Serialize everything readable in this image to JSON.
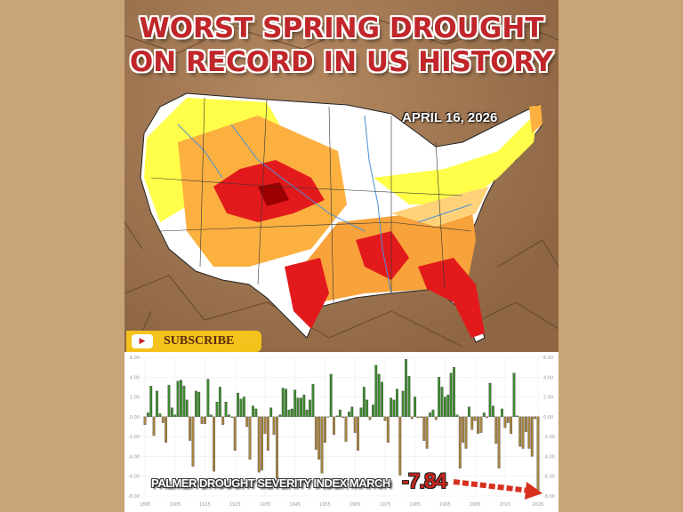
{
  "header": {
    "title_line1": "WORST SPRING DROUGHT",
    "title_line2": "ON RECORD IN US HISTORY",
    "date": "APRIL 16, 2026"
  },
  "subscribe": {
    "label": "SUBSCRIBE",
    "icon": "youtube-play-icon"
  },
  "map": {
    "subject": "US drought monitor map",
    "colors": {
      "abnormally_dry": "#ffff00",
      "moderate": "#fcd37f",
      "severe": "#ffaa00",
      "extreme": "#e60000",
      "exceptional": "#730000",
      "none": "#ffffff",
      "rivers": "#4a90d9"
    }
  },
  "annotation": {
    "label": "PALMER DROUGHT SEVERITY INDEX MARCH",
    "last_value": "-7.84"
  },
  "colors": {
    "positive": "#3d8a2e",
    "negative": "#a78440",
    "arrow": "#d8301e",
    "title": "#c0262a",
    "subscribe_bg": "#f4c21c"
  },
  "chart_data": {
    "type": "bar",
    "title": "",
    "xlabel": "",
    "ylabel": "",
    "ylim": [
      -8,
      6
    ],
    "grid": true,
    "y_ticks": [
      "6.00",
      "4.00",
      "2.00",
      "0.00",
      "-2.00",
      "-4.00",
      "-6.00",
      "-8.00"
    ],
    "x_ticks": [
      "1895",
      "1905",
      "1915",
      "1925",
      "1935",
      "1945",
      "1955",
      "1965",
      "1975",
      "1985",
      "1995",
      "2005",
      "2015",
      "2026"
    ],
    "x": [
      1895,
      1896,
      1897,
      1898,
      1899,
      1900,
      1901,
      1902,
      1903,
      1904,
      1905,
      1906,
      1907,
      1908,
      1909,
      1910,
      1911,
      1912,
      1913,
      1914,
      1915,
      1916,
      1917,
      1918,
      1919,
      1920,
      1921,
      1922,
      1923,
      1924,
      1925,
      1926,
      1927,
      1928,
      1929,
      1930,
      1931,
      1932,
      1933,
      1934,
      1935,
      1936,
      1937,
      1938,
      1939,
      1940,
      1941,
      1942,
      1943,
      1944,
      1945,
      1946,
      1947,
      1948,
      1949,
      1950,
      1951,
      1952,
      1953,
      1954,
      1955,
      1956,
      1957,
      1958,
      1959,
      1960,
      1961,
      1962,
      1963,
      1964,
      1965,
      1966,
      1967,
      1968,
      1969,
      1970,
      1971,
      1972,
      1973,
      1974,
      1975,
      1976,
      1977,
      1978,
      1979,
      1980,
      1981,
      1982,
      1983,
      1984,
      1985,
      1986,
      1987,
      1988,
      1989,
      1990,
      1991,
      1992,
      1993,
      1994,
      1995,
      1996,
      1997,
      1998,
      1999,
      2000,
      2001,
      2002,
      2003,
      2004,
      2005,
      2006,
      2007,
      2008,
      2009,
      2010,
      2011,
      2012,
      2013,
      2014,
      2015,
      2016,
      2017,
      2018,
      2019,
      2020,
      2021,
      2022,
      2023,
      2024,
      2025,
      2026
    ],
    "values": [
      -0.8,
      0.4,
      3.1,
      -1.9,
      2.6,
      0.3,
      -0.6,
      -2.6,
      3.2,
      0.9,
      0.2,
      3.6,
      3.7,
      3.1,
      1.7,
      -2.4,
      -5.0,
      2.6,
      2.5,
      -0.7,
      -0.7,
      3.8,
      0.2,
      -5.5,
      1.5,
      3.0,
      -0.8,
      1.5,
      0.2,
      -0.1,
      -3.4,
      2.4,
      1.8,
      2.0,
      -1.0,
      -4.3,
      1.1,
      0.8,
      -5.6,
      -5.4,
      -1.7,
      -3.4,
      0.9,
      -1.8,
      -6.2,
      0.2,
      2.9,
      2.8,
      0.7,
      0.8,
      2.7,
      1.9,
      1.9,
      2.2,
      0.7,
      1.7,
      3.3,
      -3.3,
      -4.3,
      -5.7,
      -2.6,
      0.0,
      4.3,
      -1.8,
      0.1,
      0.7,
      -0.1,
      -2.5,
      0.5,
      1.0,
      -1.6,
      -3.4,
      0.9,
      3.0,
      1.7,
      -0.3,
      1.2,
      5.2,
      4.3,
      3.5,
      -0.4,
      -2.6,
      1.9,
      1.7,
      2.8,
      -5.9,
      2.6,
      5.8,
      4.1,
      -0.2,
      2.0,
      -0.1,
      -0.1,
      -2.4,
      -3.2,
      0.4,
      0.7,
      -0.3,
      4.0,
      3.0,
      2.0,
      2.2,
      4.4,
      5.0,
      0.2,
      -5.2,
      -2.6,
      -3.2,
      1.0,
      -1.3,
      -0.4,
      -1.7,
      -1.6,
      0.4,
      -0.1,
      3.4,
      1.1,
      -2.7,
      -5.2,
      0.8,
      -1.1,
      -0.6,
      -1.7,
      4.4,
      0.1,
      -3.0,
      -3.2,
      -1.5,
      -3.2,
      -4.0,
      -0.2,
      -7.84
    ]
  }
}
